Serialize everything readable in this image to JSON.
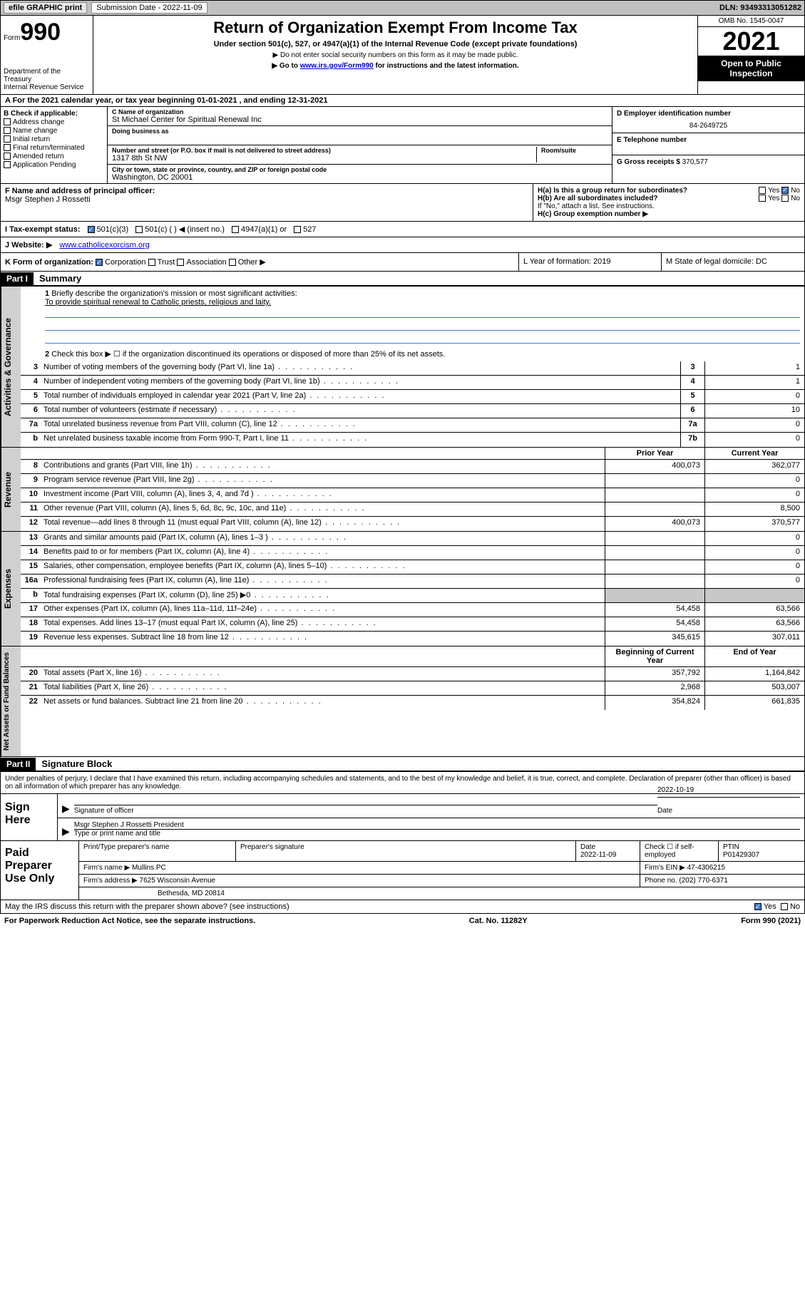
{
  "topbar": {
    "efile": "efile GRAPHIC print",
    "submission_label": "Submission Date - 2022-11-09",
    "dln_label": "DLN:",
    "dln": "93493313051282"
  },
  "header": {
    "form_label": "Form",
    "form_number": "990",
    "title": "Return of Organization Exempt From Income Tax",
    "subtitle": "Under section 501(c), 527, or 4947(a)(1) of the Internal Revenue Code (except private foundations)",
    "note1": "▶ Do not enter social security numbers on this form as it may be made public.",
    "note2_pre": "▶ Go to ",
    "note2_link": "www.irs.gov/Form990",
    "note2_post": " for instructions and the latest information.",
    "dept": "Department of the Treasury",
    "irs": "Internal Revenue Service",
    "omb": "OMB No. 1545-0047",
    "year": "2021",
    "open": "Open to Public Inspection"
  },
  "row_a": "A For the 2021 calendar year, or tax year beginning 01-01-2021   , and ending 12-31-2021",
  "section_b": {
    "b_label": "B Check if applicable:",
    "checks": {
      "address": "Address change",
      "name": "Name change",
      "initial": "Initial return",
      "final": "Final return/terminated",
      "amended": "Amended return",
      "app": "Application Pending"
    },
    "c_label": "C Name of organization",
    "org_name": "St Michael Center for Spiritual Renewal Inc",
    "dba_label": "Doing business as",
    "addr_label": "Number and street (or P.O. box if mail is not delivered to street address)",
    "room_label": "Room/suite",
    "addr": "1317 8th St NW",
    "city_label": "City or town, state or province, country, and ZIP or foreign postal code",
    "city": "Washington, DC  20001",
    "d_label": "D Employer identification number",
    "ein": "84-2649725",
    "e_label": "E Telephone number",
    "g_label": "G Gross receipts $",
    "gross": "370,577"
  },
  "section_f": {
    "f_label": "F Name and address of principal officer:",
    "officer": "Msgr Stephen J Rossetti",
    "ha": "H(a) Is this a group return for subordinates?",
    "ha_no": "No",
    "hb": "H(b) Are all subordinates included?",
    "hb_note": "If \"No,\" attach a list. See instructions.",
    "hc": "H(c) Group exemption number ▶"
  },
  "row_i": {
    "label": "I     Tax-exempt status:",
    "c3": "501(c)(3)",
    "c": "501(c) (  ) ◀ (insert no.)",
    "a1": "4947(a)(1) or",
    "527": "527"
  },
  "row_j": {
    "label": "J    Website: ▶",
    "url": "www.catholicexorcism.org"
  },
  "row_k": {
    "k_label": "K Form of organization:",
    "corp": "Corporation",
    "trust": "Trust",
    "assoc": "Association",
    "other": "Other ▶",
    "l": "L Year of formation: 2019",
    "m": "M State of legal domicile: DC"
  },
  "part1": {
    "part": "Part I",
    "title": "Summary",
    "line1_label": "Briefly describe the organization's mission or most significant activities:",
    "mission": "To provide spiritual renewal to Catholic priests, religious and laity.",
    "line2": "Check this box ▶ ☐ if the organization discontinued its operations or disposed of more than 25% of its net assets.",
    "governance_tab": "Activities & Governance",
    "revenue_tab": "Revenue",
    "expenses_tab": "Expenses",
    "netassets_tab": "Net Assets or Fund Balances",
    "lines_top": [
      {
        "n": "3",
        "desc": "Number of voting members of the governing body (Part VI, line 1a)",
        "ref": "3",
        "val": "1"
      },
      {
        "n": "4",
        "desc": "Number of independent voting members of the governing body (Part VI, line 1b)",
        "ref": "4",
        "val": "1"
      },
      {
        "n": "5",
        "desc": "Total number of individuals employed in calendar year 2021 (Part V, line 2a)",
        "ref": "5",
        "val": "0"
      },
      {
        "n": "6",
        "desc": "Total number of volunteers (estimate if necessary)",
        "ref": "6",
        "val": "10"
      },
      {
        "n": "7a",
        "desc": "Total unrelated business revenue from Part VIII, column (C), line 12",
        "ref": "7a",
        "val": "0"
      },
      {
        "n": "b",
        "desc": "Net unrelated business taxable income from Form 990-T, Part I, line 11",
        "ref": "7b",
        "val": "0"
      }
    ],
    "col_prior": "Prior Year",
    "col_current": "Current Year",
    "revenue_lines": [
      {
        "n": "8",
        "desc": "Contributions and grants (Part VIII, line 1h)",
        "prior": "400,073",
        "curr": "362,077"
      },
      {
        "n": "9",
        "desc": "Program service revenue (Part VIII, line 2g)",
        "prior": "",
        "curr": "0"
      },
      {
        "n": "10",
        "desc": "Investment income (Part VIII, column (A), lines 3, 4, and 7d )",
        "prior": "",
        "curr": "0"
      },
      {
        "n": "11",
        "desc": "Other revenue (Part VIII, column (A), lines 5, 6d, 8c, 9c, 10c, and 11e)",
        "prior": "",
        "curr": "8,500"
      },
      {
        "n": "12",
        "desc": "Total revenue—add lines 8 through 11 (must equal Part VIII, column (A), line 12)",
        "prior": "400,073",
        "curr": "370,577"
      }
    ],
    "expense_lines": [
      {
        "n": "13",
        "desc": "Grants and similar amounts paid (Part IX, column (A), lines 1–3 )",
        "prior": "",
        "curr": "0"
      },
      {
        "n": "14",
        "desc": "Benefits paid to or for members (Part IX, column (A), line 4)",
        "prior": "",
        "curr": "0"
      },
      {
        "n": "15",
        "desc": "Salaries, other compensation, employee benefits (Part IX, column (A), lines 5–10)",
        "prior": "",
        "curr": "0"
      },
      {
        "n": "16a",
        "desc": "Professional fundraising fees (Part IX, column (A), line 11e)",
        "prior": "",
        "curr": "0"
      },
      {
        "n": "b",
        "desc": "Total fundraising expenses (Part IX, column (D), line 25) ▶0",
        "prior": "grey",
        "curr": "grey"
      },
      {
        "n": "17",
        "desc": "Other expenses (Part IX, column (A), lines 11a–11d, 11f–24e)",
        "prior": "54,458",
        "curr": "63,566"
      },
      {
        "n": "18",
        "desc": "Total expenses. Add lines 13–17 (must equal Part IX, column (A), line 25)",
        "prior": "54,458",
        "curr": "63,566"
      },
      {
        "n": "19",
        "desc": "Revenue less expenses. Subtract line 18 from line 12",
        "prior": "345,615",
        "curr": "307,011"
      }
    ],
    "col_begin": "Beginning of Current Year",
    "col_end": "End of Year",
    "netasset_lines": [
      {
        "n": "20",
        "desc": "Total assets (Part X, line 16)",
        "prior": "357,792",
        "curr": "1,164,842"
      },
      {
        "n": "21",
        "desc": "Total liabilities (Part X, line 26)",
        "prior": "2,968",
        "curr": "503,007"
      },
      {
        "n": "22",
        "desc": "Net assets or fund balances. Subtract line 21 from line 20",
        "prior": "354,824",
        "curr": "661,835"
      }
    ]
  },
  "part2": {
    "part": "Part II",
    "title": "Signature Block",
    "declaration": "Under penalties of perjury, I declare that I have examined this return, including accompanying schedules and statements, and to the best of my knowledge and belief, it is true, correct, and complete. Declaration of preparer (other than officer) is based on all information of which preparer has any knowledge.",
    "sign_here": "Sign Here",
    "sig_officer": "Signature of officer",
    "sig_date": "2022-10-19",
    "date_label": "Date",
    "officer_name": "Msgr Stephen J Rossetti President",
    "type_name": "Type or print name and title",
    "paid": "Paid Preparer Use Only",
    "prep_name_label": "Print/Type preparer's name",
    "prep_sig_label": "Preparer's signature",
    "prep_date_label": "Date",
    "prep_date": "2022-11-09",
    "check_if": "Check ☐ if self-employed",
    "ptin_label": "PTIN",
    "ptin": "P01429307",
    "firm_name_label": "Firm's name    ▶",
    "firm_name": "Mullins PC",
    "firm_ein_label": "Firm's EIN ▶",
    "firm_ein": "47-4306215",
    "firm_addr_label": "Firm's address ▶",
    "firm_addr1": "7625 Wisconsin Avenue",
    "firm_addr2": "Bethesda, MD  20814",
    "phone_label": "Phone no.",
    "phone": "(202) 770-6371"
  },
  "footer": {
    "discuss": "May the IRS discuss this return with the preparer shown above? (see instructions)",
    "yes": "Yes",
    "no": "No",
    "paperwork": "For Paperwork Reduction Act Notice, see the separate instructions.",
    "cat": "Cat. No. 11282Y",
    "form": "Form 990 (2021)"
  },
  "colors": {
    "link": "#0000cc",
    "check_blue": "#3b7dd8",
    "grey_bg": "#c8c8c8",
    "tab_bg": "#d0d0d0"
  }
}
